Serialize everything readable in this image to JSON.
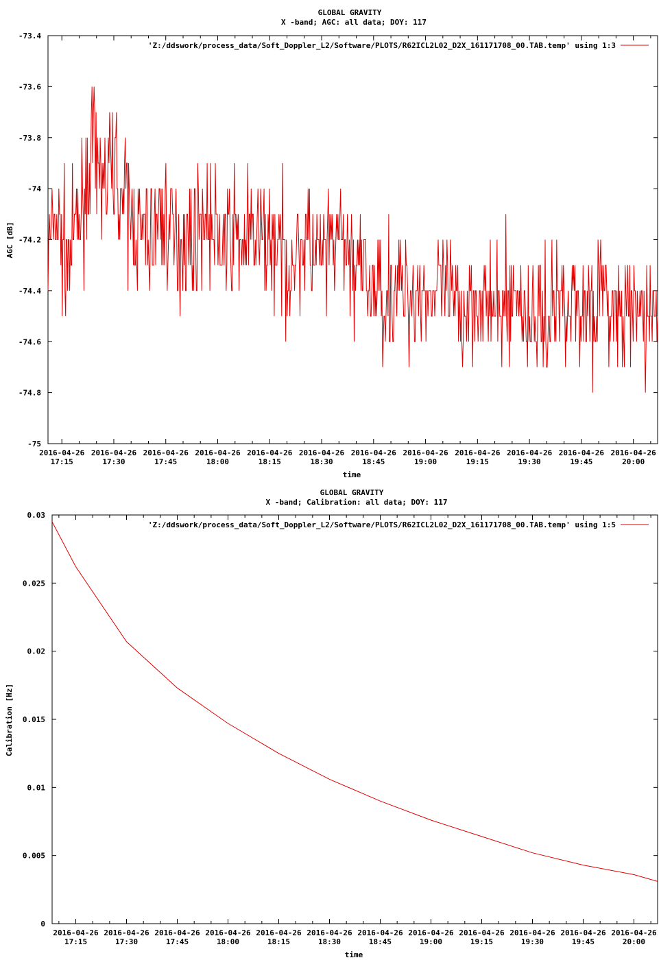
{
  "chart_data": [
    {
      "type": "line",
      "title": "GLOBAL GRAVITY",
      "subtitle": "X -band; AGC: all data; DOY: 117",
      "xlabel": "time",
      "ylabel": "AGC [dB]",
      "ylim": [
        -75,
        -73.4
      ],
      "y_ticks": [
        "-73.4",
        "-73.6",
        "-73.8",
        "-74",
        "-74.2",
        "-74.4",
        "-74.6",
        "-74.8",
        "-75"
      ],
      "x_tick_dates": [
        "2016-04-26",
        "2016-04-26",
        "2016-04-26",
        "2016-04-26",
        "2016-04-26",
        "2016-04-26",
        "2016-04-26",
        "2016-04-26",
        "2016-04-26",
        "2016-04-26",
        "2016-04-26",
        "2016-04-26"
      ],
      "x_tick_times": [
        "17:15",
        "17:30",
        "17:45",
        "18:00",
        "18:15",
        "18:30",
        "18:45",
        "19:00",
        "19:15",
        "19:30",
        "19:45",
        "20:00"
      ],
      "xlim": [
        "2016-04-26 17:11",
        "2016-04-26 20:07"
      ],
      "grid": false,
      "legend_position": "top-right",
      "line_color": "#e00000",
      "series": [
        {
          "name": "'Z:/ddswork/process_data/Soft_Doppler_L2/Software/PLOTS/R62ICL2L02_D2X_161171708_00.TAB.temp' using 1:3",
          "x": [
            "17:11",
            "17:13",
            "17:15",
            "17:17",
            "17:20",
            "17:22",
            "17:24",
            "17:25",
            "17:26",
            "17:28",
            "17:29",
            "17:30",
            "17:32",
            "17:35",
            "17:38",
            "17:40",
            "17:44",
            "17:48",
            "17:52",
            "17:56",
            "18:00",
            "18:05",
            "18:10",
            "18:15",
            "18:20",
            "18:25",
            "18:30",
            "18:35",
            "18:40",
            "18:45",
            "18:50",
            "18:55",
            "19:00",
            "19:05",
            "19:10",
            "19:15",
            "19:20",
            "19:25",
            "19:30",
            "19:35",
            "19:40",
            "19:45",
            "19:50",
            "19:55",
            "20:00",
            "20:05",
            "20:07"
          ],
          "values": [
            -74.3,
            -74.1,
            -74.2,
            -74.3,
            -74.1,
            -74.0,
            -73.8,
            -74.0,
            -73.9,
            -74.0,
            -73.9,
            -73.9,
            -74.0,
            -74.1,
            -74.2,
            -74.2,
            -74.1,
            -74.2,
            -74.2,
            -74.1,
            -74.2,
            -74.2,
            -74.2,
            -74.2,
            -74.3,
            -74.2,
            -74.3,
            -74.2,
            -74.3,
            -74.4,
            -74.4,
            -74.4,
            -74.4,
            -74.4,
            -74.5,
            -74.4,
            -74.5,
            -74.4,
            -74.5,
            -74.5,
            -74.4,
            -74.5,
            -74.4,
            -74.5,
            -74.5,
            -74.5,
            -74.5
          ]
        }
      ]
    },
    {
      "type": "line",
      "title": "GLOBAL GRAVITY",
      "subtitle": "X -band; Calibration: all data; DOY: 117",
      "xlabel": "time",
      "ylabel": "Calibration [Hz]",
      "ylim": [
        0,
        0.03
      ],
      "y_ticks": [
        "0.03",
        "0.025",
        "0.02",
        "0.015",
        "0.01",
        "0.005",
        "0"
      ],
      "x_tick_dates": [
        "2016-04-26",
        "2016-04-26",
        "2016-04-26",
        "2016-04-26",
        "2016-04-26",
        "2016-04-26",
        "2016-04-26",
        "2016-04-26",
        "2016-04-26",
        "2016-04-26",
        "2016-04-26",
        "2016-04-26"
      ],
      "x_tick_times": [
        "17:15",
        "17:30",
        "17:45",
        "18:00",
        "18:15",
        "18:30",
        "18:45",
        "19:00",
        "19:15",
        "19:30",
        "19:45",
        "20:00"
      ],
      "xlim": [
        "2016-04-26 17:08",
        "2016-04-26 20:07"
      ],
      "grid": false,
      "legend_position": "top-right",
      "line_color": "#e00000",
      "series": [
        {
          "name": "'Z:/ddswork/process_data/Soft_Doppler_L2/Software/PLOTS/R62ICL2L02_D2X_161171708_00.TAB.temp' using 1:5",
          "x": [
            "17:08",
            "17:15",
            "17:30",
            "17:45",
            "18:00",
            "18:15",
            "18:30",
            "18:45",
            "19:00",
            "19:15",
            "19:30",
            "19:45",
            "20:00",
            "20:07"
          ],
          "values": [
            0.0295,
            0.0262,
            0.0207,
            0.0173,
            0.0147,
            0.0125,
            0.0106,
            0.009,
            0.0076,
            0.0064,
            0.0052,
            0.0043,
            0.0036,
            0.0031
          ]
        }
      ]
    }
  ]
}
